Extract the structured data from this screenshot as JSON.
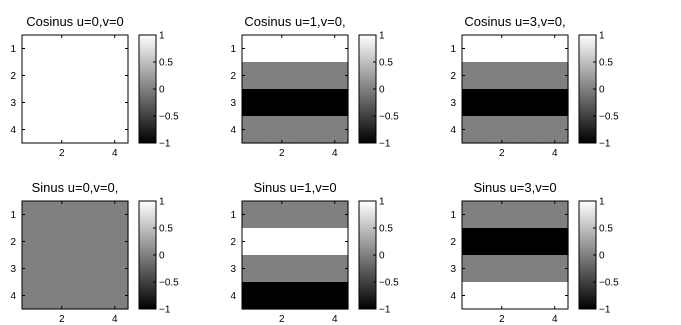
{
  "chart_data": [
    {
      "type": "heatmap",
      "title": "Cosinus u=0,v=0",
      "rows": [
        1,
        2,
        3,
        4
      ],
      "cols": [
        1,
        2,
        3,
        4
      ],
      "x_ticks": [
        "2",
        "4"
      ],
      "y_ticks": [
        "1",
        "2",
        "3",
        "4"
      ],
      "values": [
        [
          1,
          1,
          1,
          1
        ],
        [
          1,
          1,
          1,
          1
        ],
        [
          1,
          1,
          1,
          1
        ],
        [
          1,
          1,
          1,
          1
        ]
      ],
      "colorbar": {
        "range": [
          -1,
          1
        ],
        "ticks": [
          "1",
          "0.5",
          "0",
          "−0.5",
          "−1"
        ],
        "colormap": "gray"
      }
    },
    {
      "type": "heatmap",
      "title": "Cosinus u=1,v=0,",
      "rows": [
        1,
        2,
        3,
        4
      ],
      "cols": [
        1,
        2,
        3,
        4
      ],
      "x_ticks": [
        "2",
        "4"
      ],
      "y_ticks": [
        "1",
        "2",
        "3",
        "4"
      ],
      "values": [
        [
          1,
          1,
          1,
          1
        ],
        [
          0,
          0,
          0,
          0
        ],
        [
          -1,
          -1,
          -1,
          -1
        ],
        [
          0,
          0,
          0,
          0
        ]
      ],
      "colorbar": {
        "range": [
          -1,
          1
        ],
        "ticks": [
          "1",
          "0.5",
          "0",
          "−0.5",
          "−1"
        ],
        "colormap": "gray"
      }
    },
    {
      "type": "heatmap",
      "title": "Cosinus u=3,v=0,",
      "rows": [
        1,
        2,
        3,
        4
      ],
      "cols": [
        1,
        2,
        3,
        4
      ],
      "x_ticks": [
        "2",
        "4"
      ],
      "y_ticks": [
        "1",
        "2",
        "3",
        "4"
      ],
      "values": [
        [
          1,
          1,
          1,
          1
        ],
        [
          0,
          0,
          0,
          0
        ],
        [
          -1,
          -1,
          -1,
          -1
        ],
        [
          0,
          0,
          0,
          0
        ]
      ],
      "colorbar": {
        "range": [
          -1,
          1
        ],
        "ticks": [
          "1",
          "0.5",
          "0",
          "−0.5",
          "−1"
        ],
        "colormap": "gray"
      }
    },
    {
      "type": "heatmap",
      "title": "Sinus u=0,v=0,",
      "rows": [
        1,
        2,
        3,
        4
      ],
      "cols": [
        1,
        2,
        3,
        4
      ],
      "x_ticks": [
        "2",
        "4"
      ],
      "y_ticks": [
        "1",
        "2",
        "3",
        "4"
      ],
      "values": [
        [
          0,
          0,
          0,
          0
        ],
        [
          0,
          0,
          0,
          0
        ],
        [
          0,
          0,
          0,
          0
        ],
        [
          0,
          0,
          0,
          0
        ]
      ],
      "colorbar": {
        "range": [
          -1,
          1
        ],
        "ticks": [
          "1",
          "0.5",
          "0",
          "−0.5",
          "−1"
        ],
        "colormap": "gray"
      }
    },
    {
      "type": "heatmap",
      "title": "Sinus u=1,v=0",
      "rows": [
        1,
        2,
        3,
        4
      ],
      "cols": [
        1,
        2,
        3,
        4
      ],
      "x_ticks": [
        "2",
        "4"
      ],
      "y_ticks": [
        "1",
        "2",
        "3",
        "4"
      ],
      "values": [
        [
          0,
          0,
          0,
          0
        ],
        [
          1,
          1,
          1,
          1
        ],
        [
          0,
          0,
          0,
          0
        ],
        [
          -1,
          -1,
          -1,
          -1
        ]
      ],
      "colorbar": {
        "range": [
          -1,
          1
        ],
        "ticks": [
          "1",
          "0.5",
          "0",
          "−0.5",
          "−1"
        ],
        "colormap": "gray"
      }
    },
    {
      "type": "heatmap",
      "title": "Sinus u=3,v=0",
      "rows": [
        1,
        2,
        3,
        4
      ],
      "cols": [
        1,
        2,
        3,
        4
      ],
      "x_ticks": [
        "2",
        "4"
      ],
      "y_ticks": [
        "1",
        "2",
        "3",
        "4"
      ],
      "values": [
        [
          0,
          0,
          0,
          0
        ],
        [
          -1,
          -1,
          -1,
          -1
        ],
        [
          0,
          0,
          0,
          0
        ],
        [
          1,
          1,
          1,
          1
        ]
      ],
      "colorbar": {
        "range": [
          -1,
          1
        ],
        "ticks": [
          "1",
          "0.5",
          "0",
          "−0.5",
          "−1"
        ],
        "colormap": "gray"
      }
    }
  ]
}
